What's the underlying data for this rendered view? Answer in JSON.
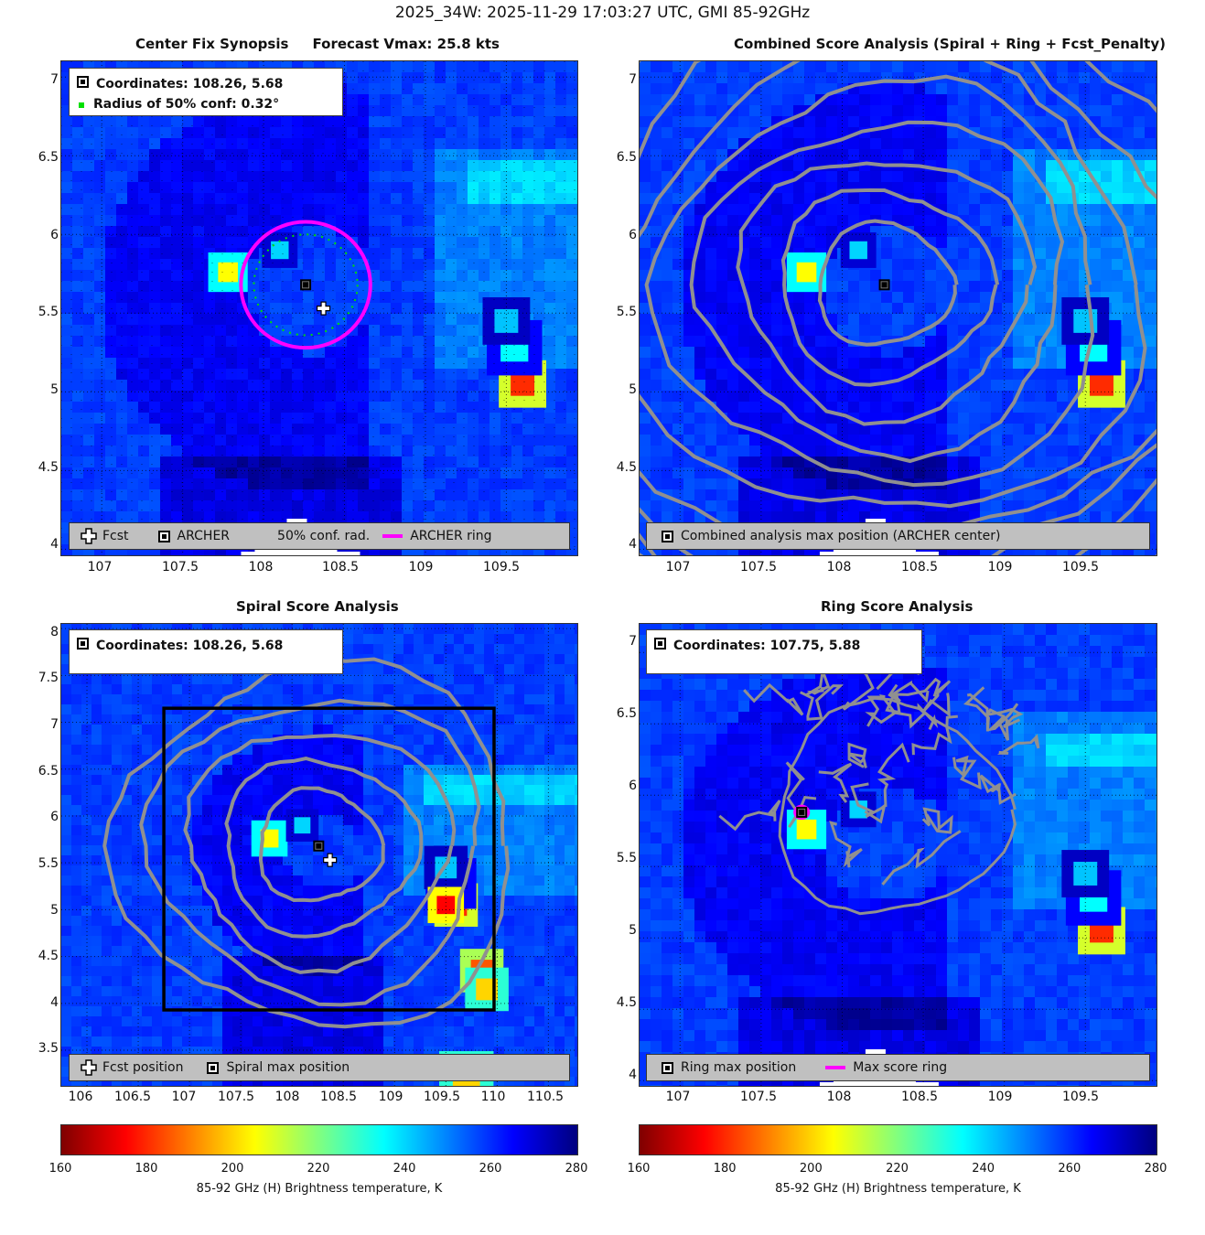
{
  "suptitle": "2025_34W: 2025-11-29 17:03:27 UTC, GMI 85-92GHz",
  "colormap": [
    "#7f0000",
    "#ff0000",
    "#ff8000",
    "#ffff00",
    "#80ff80",
    "#00ffff",
    "#0080ff",
    "#0000ff",
    "#00007f"
  ],
  "panels": [
    {
      "title": "Center Fix Synopsis     Forecast Vmax: 25.8 kts",
      "xticks": [
        "107",
        "107.5",
        "108",
        "108.5",
        "109",
        "109.5"
      ],
      "yticks": [
        "7",
        "6.5",
        "6",
        "5.5",
        "5",
        "4.5",
        "4"
      ],
      "info": [
        {
          "icon": "square-marker",
          "text": "Coordinates: 108.26, 5.68"
        },
        {
          "icon": "green-dot",
          "text": "Radius of 50% conf: 0.32°"
        }
      ],
      "legend": [
        {
          "icon": "cross-marker",
          "text": "Fcst"
        },
        {
          "icon": "square-marker",
          "text": "ARCHER"
        },
        {
          "icon": "none",
          "text": "50% conf. rad."
        },
        {
          "icon": "magenta-line",
          "text": "ARCHER ring"
        }
      ]
    },
    {
      "title": "Combined Score Analysis (Spiral + Ring + Fcst_Penalty)",
      "xticks": [
        "107",
        "107.5",
        "108",
        "108.5",
        "109",
        "109.5"
      ],
      "yticks": [
        "7",
        "6.5",
        "6",
        "5.5",
        "5",
        "4.5",
        "4"
      ],
      "legend": [
        {
          "icon": "square-marker",
          "text": "Combined analysis max position (ARCHER center)"
        }
      ]
    },
    {
      "title": "Spiral Score Analysis",
      "xticks": [
        "106",
        "106.5",
        "107",
        "107.5",
        "108",
        "108.5",
        "109",
        "109.5",
        "110",
        "110.5"
      ],
      "yticks": [
        "8",
        "7.5",
        "7",
        "6.5",
        "6",
        "5.5",
        "5",
        "4.5",
        "4",
        "3.5"
      ],
      "info": [
        {
          "icon": "square-marker",
          "text": "Coordinates: 108.26, 5.68"
        }
      ],
      "legend": [
        {
          "icon": "cross-marker",
          "text": "Fcst position"
        },
        {
          "icon": "square-marker",
          "text": "Spiral max position"
        }
      ]
    },
    {
      "title": "Ring Score Analysis",
      "xticks": [
        "107",
        "107.5",
        "108",
        "108.5",
        "109",
        "109.5"
      ],
      "yticks": [
        "7",
        "6.5",
        "6",
        "5.5",
        "5",
        "4.5",
        "4"
      ],
      "info": [
        {
          "icon": "square-marker",
          "text": "Coordinates: 107.75, 5.88"
        }
      ],
      "legend": [
        {
          "icon": "square-marker",
          "text": "Ring max position"
        },
        {
          "icon": "magenta-line",
          "text": "Max score ring"
        }
      ]
    }
  ],
  "colorbars": [
    {
      "ticks": [
        "160",
        "180",
        "200",
        "220",
        "240",
        "260",
        "280"
      ],
      "label": "85-92 GHz (H) Brightness temperature, K"
    },
    {
      "ticks": [
        "160",
        "180",
        "200",
        "220",
        "240",
        "260",
        "280"
      ],
      "label": "85-92 GHz (H) Brightness temperature, K"
    }
  ],
  "chart_data": [
    {
      "type": "heatmap",
      "title": "Center Fix Synopsis     Forecast Vmax: 25.8 kts",
      "xlim": [
        106.75,
        109.95
      ],
      "ylim": [
        3.95,
        7.1
      ],
      "value_label": "85-92 GHz (H) Brightness temperature, K",
      "vlim": [
        160,
        280
      ],
      "grid": true,
      "points": [
        {
          "name": "ARCHER",
          "x": 108.26,
          "y": 5.68,
          "marker": "square"
        },
        {
          "name": "Fcst",
          "x": 108.37,
          "y": 5.53,
          "marker": "cross"
        }
      ],
      "rings": [
        {
          "name": "ARCHER ring",
          "x": 108.26,
          "y": 5.68,
          "r": 0.4,
          "color": "#ff00ff"
        },
        {
          "name": "50% conf. rad.",
          "x": 108.26,
          "y": 5.68,
          "r": 0.32,
          "color": "#00e000",
          "dotted": true
        }
      ],
      "hotspots": [
        {
          "x": 107.78,
          "y": 5.76,
          "value": 205
        },
        {
          "x": 109.6,
          "y": 5.05,
          "value": 180
        },
        {
          "x": 109.55,
          "y": 5.3,
          "value": 235
        }
      ]
    },
    {
      "type": "heatmap",
      "title": "Combined Score Analysis (Spiral + Ring + Fcst_Penalty)",
      "xlim": [
        106.75,
        109.95
      ],
      "ylim": [
        3.95,
        7.1
      ],
      "vlim": [
        160,
        280
      ],
      "points": [
        {
          "name": "Combined analysis max position (ARCHER center)",
          "x": 108.26,
          "y": 5.68,
          "marker": "square"
        }
      ],
      "contours": {
        "center": [
          108.26,
          5.68
        ],
        "count": 11,
        "color": "#909090"
      }
    },
    {
      "type": "heatmap",
      "title": "Spiral Score Analysis",
      "xlim": [
        105.75,
        110.8
      ],
      "ylim": [
        3.1,
        8.05
      ],
      "vlim": [
        160,
        280
      ],
      "points": [
        {
          "name": "Spiral max position",
          "x": 108.26,
          "y": 5.68,
          "marker": "square"
        },
        {
          "name": "Fcst position",
          "x": 108.37,
          "y": 5.53,
          "marker": "cross"
        }
      ],
      "box": {
        "x": [
          106.75,
          109.97
        ],
        "y": [
          3.93,
          7.15
        ]
      },
      "contours": {
        "center": [
          108.26,
          5.68
        ],
        "count": 5,
        "color": "#909090"
      }
    },
    {
      "type": "heatmap",
      "title": "Ring Score Analysis",
      "xlim": [
        106.75,
        109.95
      ],
      "ylim": [
        3.95,
        7.2
      ],
      "vlim": [
        160,
        280
      ],
      "points": [
        {
          "name": "Ring max position",
          "x": 107.75,
          "y": 5.88,
          "marker": "square"
        }
      ],
      "rings": [
        {
          "name": "Max score ring",
          "x": 107.75,
          "y": 5.88,
          "r": 0.04,
          "color": "#ff00ff"
        }
      ],
      "contours": {
        "center": [
          108.3,
          5.9
        ],
        "count": 1,
        "color": "#909090"
      }
    }
  ]
}
